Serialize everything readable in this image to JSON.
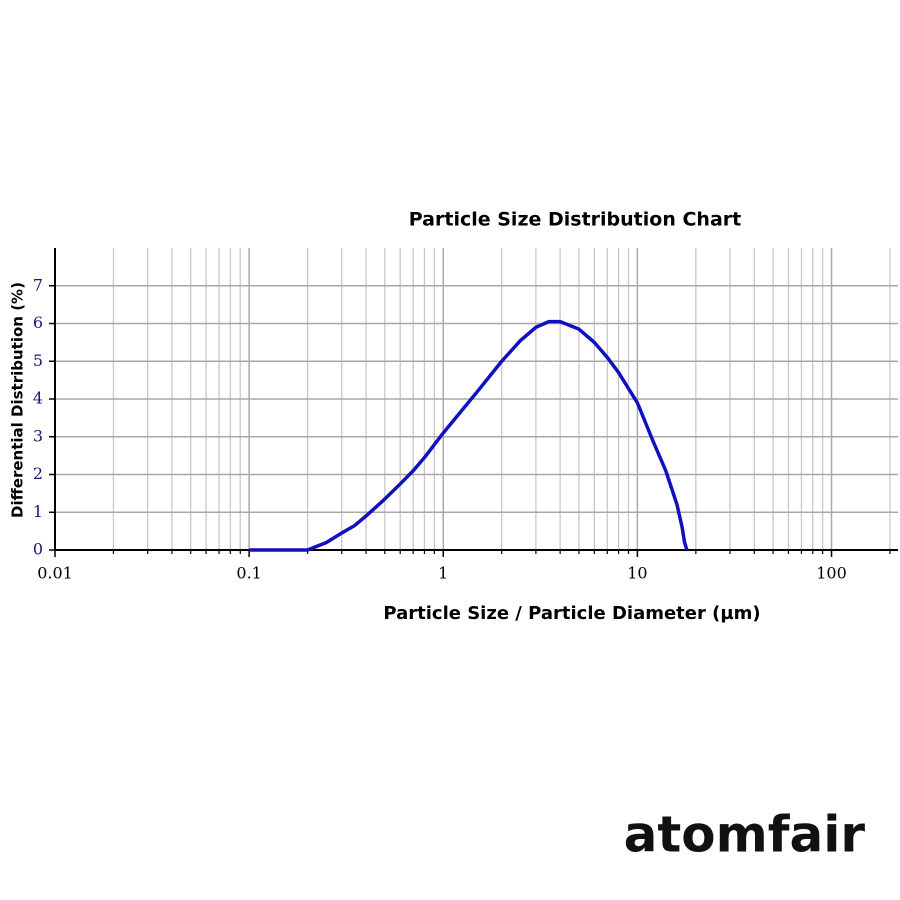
{
  "chart_data": {
    "type": "line",
    "title": "Particle Size Distribution Chart",
    "x_label": "Particle Size / Particle Diameter (µm)",
    "y_label": "Differential Distribution (%)",
    "log_x": true,
    "grid": true,
    "xlim": [
      0.01,
      220
    ],
    "ylim": [
      0,
      8
    ],
    "xticks": [
      0.01,
      0.1,
      1,
      10,
      100
    ],
    "x_minor_ticks": [
      0.02,
      0.03,
      0.04,
      0.05,
      0.06,
      0.07,
      0.08,
      0.09,
      0.2,
      0.3,
      0.4,
      0.5,
      0.6,
      0.7,
      0.8,
      0.9,
      2,
      3,
      4,
      5,
      6,
      7,
      8,
      9,
      20,
      30,
      40,
      50,
      60,
      70,
      80,
      90,
      200
    ],
    "yticks": [
      0,
      1,
      2,
      3,
      4,
      5,
      6,
      7
    ],
    "series": [
      {
        "color": "#1010c0",
        "x": [
          0.1,
          0.15,
          0.2,
          0.25,
          0.3,
          0.35,
          0.4,
          0.5,
          0.6,
          0.7,
          0.8,
          1,
          1.5,
          2,
          2.5,
          3,
          3.5,
          4,
          5,
          6,
          7,
          8,
          10,
          12,
          14,
          16,
          17,
          17.5,
          18
        ],
        "values": [
          0,
          0,
          0,
          0.2,
          0.45,
          0.65,
          0.9,
          1.35,
          1.75,
          2.1,
          2.45,
          3.1,
          4.2,
          5.0,
          5.55,
          5.9,
          6.05,
          6.05,
          5.85,
          5.5,
          5.1,
          4.7,
          3.9,
          2.9,
          2.1,
          1.2,
          0.6,
          0.2,
          0
        ]
      }
    ],
    "brand": "atomfair"
  }
}
